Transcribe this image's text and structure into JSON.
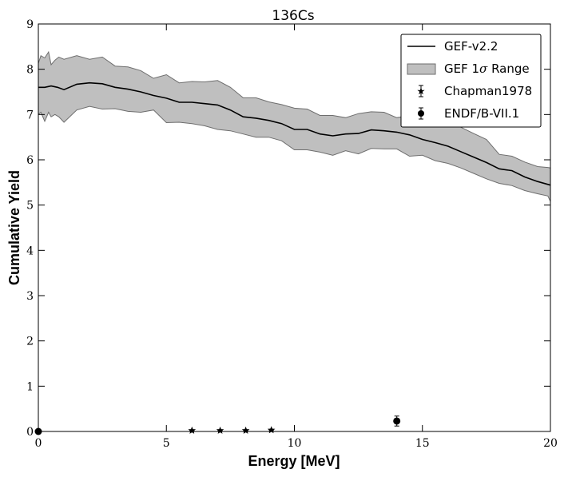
{
  "chart_data": {
    "type": "line",
    "title": "136Cs",
    "xlabel": "Energy [MeV]",
    "ylabel": "Cumulative Yield",
    "xlim": [
      0,
      20
    ],
    "ylim": [
      0,
      9
    ],
    "xticks": [
      0,
      5,
      10,
      15,
      20
    ],
    "yticks": [
      0,
      1,
      2,
      3,
      4,
      5,
      6,
      7,
      8,
      9
    ],
    "grid": false,
    "legend_position": "top-right",
    "series": [
      {
        "name": "GEF-v2.2",
        "kind": "line",
        "color": "#000000",
        "x": [
          0,
          0.25,
          0.5,
          0.75,
          1.0,
          1.5,
          2.0,
          2.5,
          3.0,
          3.5,
          4.0,
          4.5,
          5.0,
          5.5,
          6.0,
          6.5,
          7.0,
          7.5,
          8.0,
          8.5,
          9.0,
          9.5,
          10.0,
          10.5,
          11.0,
          11.5,
          12.0,
          12.5,
          13.0,
          13.5,
          14.0,
          14.5,
          15.0,
          15.5,
          16.0,
          16.5,
          17.0,
          17.5,
          18.0,
          18.5,
          19.0,
          19.5,
          20.0
        ],
        "y": [
          7.6,
          7.6,
          7.63,
          7.6,
          7.55,
          7.67,
          7.7,
          7.68,
          7.6,
          7.56,
          7.5,
          7.42,
          7.36,
          7.27,
          7.27,
          7.24,
          7.21,
          7.1,
          6.95,
          6.92,
          6.87,
          6.8,
          6.67,
          6.67,
          6.57,
          6.53,
          6.57,
          6.58,
          6.66,
          6.64,
          6.61,
          6.55,
          6.45,
          6.38,
          6.3,
          6.18,
          6.06,
          5.94,
          5.8,
          5.76,
          5.62,
          5.52,
          5.44
        ]
      },
      {
        "name": "GEF 1σ Range",
        "legend_label_prefix": "GEF 1",
        "legend_label_symbol": "σ",
        "legend_label_suffix": " Range",
        "kind": "band",
        "fill": "#bfbfbf",
        "edge": "#6e6e6e",
        "x": [
          0,
          0.1,
          0.25,
          0.4,
          0.5,
          0.65,
          0.8,
          1.0,
          1.5,
          2.0,
          2.5,
          3.0,
          3.5,
          4.0,
          4.5,
          5.0,
          5.5,
          6.0,
          6.5,
          7.0,
          7.5,
          8.0,
          8.5,
          9.0,
          9.5,
          10.0,
          10.5,
          11.0,
          11.5,
          12.0,
          12.5,
          13.0,
          13.5,
          14.0,
          14.5,
          15.0,
          15.5,
          16.0,
          16.5,
          17.0,
          17.5,
          18.0,
          18.5,
          19.0,
          19.5,
          19.9,
          20.0
        ],
        "upper": [
          8.13,
          8.3,
          8.25,
          8.38,
          8.1,
          8.2,
          8.27,
          8.22,
          8.3,
          8.22,
          8.27,
          8.07,
          8.05,
          7.97,
          7.8,
          7.88,
          7.7,
          7.73,
          7.72,
          7.75,
          7.6,
          7.37,
          7.37,
          7.28,
          7.22,
          7.14,
          7.12,
          6.98,
          6.98,
          6.93,
          7.02,
          7.06,
          7.05,
          6.93,
          6.98,
          6.88,
          6.9,
          6.82,
          6.72,
          6.58,
          6.45,
          6.12,
          6.08,
          5.95,
          5.85,
          5.83,
          5.82
        ],
        "lower": [
          7.0,
          7.05,
          6.85,
          7.05,
          6.95,
          7.0,
          6.95,
          6.83,
          7.1,
          7.18,
          7.12,
          7.13,
          7.07,
          7.05,
          7.1,
          6.82,
          6.83,
          6.8,
          6.75,
          6.67,
          6.64,
          6.57,
          6.5,
          6.5,
          6.42,
          6.22,
          6.22,
          6.17,
          6.1,
          6.2,
          6.13,
          6.25,
          6.24,
          6.24,
          6.08,
          6.1,
          5.98,
          5.92,
          5.82,
          5.7,
          5.58,
          5.48,
          5.43,
          5.32,
          5.25,
          5.2,
          5.08
        ]
      },
      {
        "name": "Chapman1978",
        "kind": "errorbar",
        "marker": "star",
        "x": [
          6.0,
          7.1,
          8.1,
          9.1
        ],
        "y": [
          0.02,
          0.02,
          0.02,
          0.03
        ],
        "yerr": [
          0.01,
          0.01,
          0.01,
          0.01
        ]
      },
      {
        "name": "ENDF/B-VII.1",
        "kind": "errorbar",
        "marker": "circle",
        "x": [
          0.0,
          14.0
        ],
        "y": [
          0.0,
          0.23
        ],
        "yerr": [
          0.0,
          0.11
        ]
      }
    ]
  }
}
